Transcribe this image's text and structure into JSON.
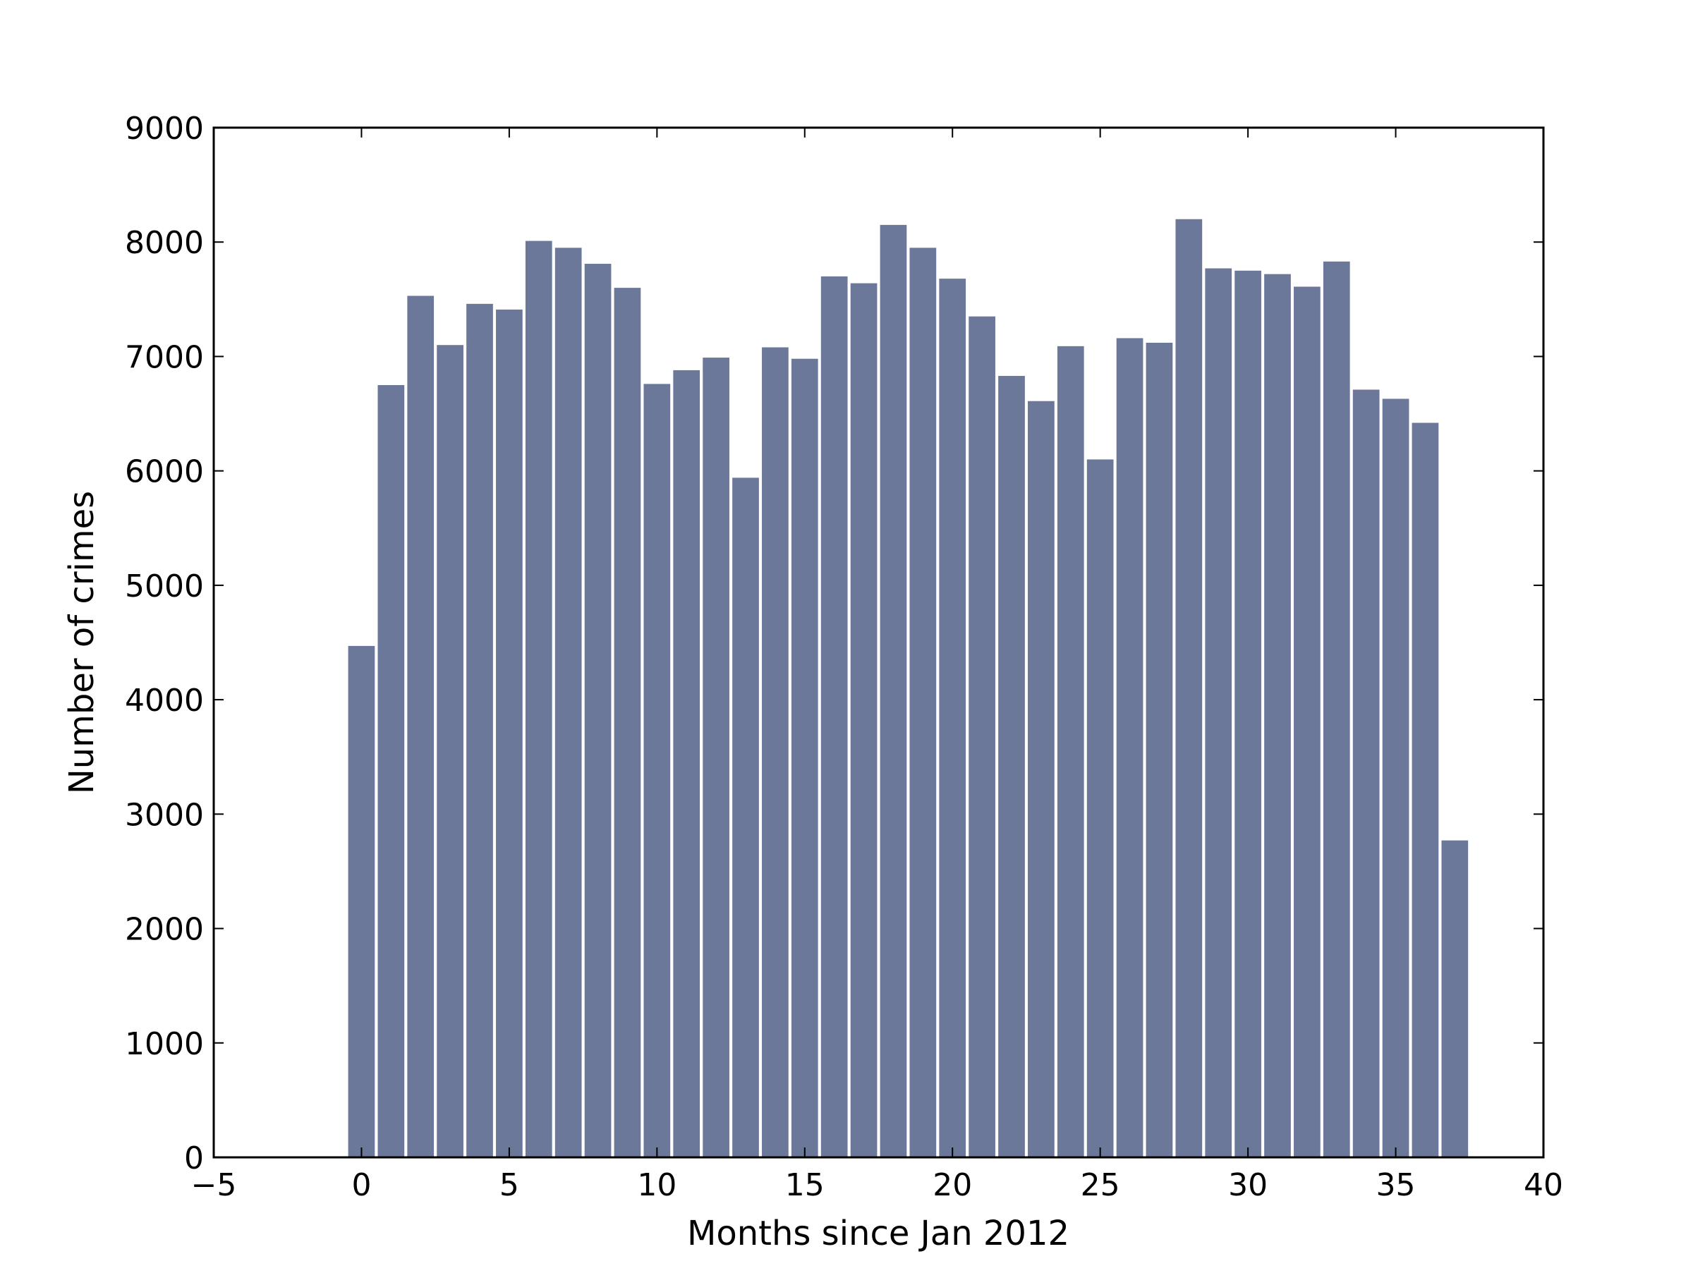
{
  "chart_data": {
    "type": "bar",
    "title": "",
    "xlabel": "Months since Jan 2012",
    "ylabel": "Number of crimes",
    "xlim": [
      -5,
      40
    ],
    "ylim": [
      0,
      9000
    ],
    "xticks": [
      -5,
      0,
      5,
      10,
      15,
      20,
      25,
      30,
      35,
      40
    ],
    "xtick_labels": [
      "−5",
      "0",
      "5",
      "10",
      "15",
      "20",
      "25",
      "30",
      "35",
      "40"
    ],
    "yticks": [
      0,
      1000,
      2000,
      3000,
      4000,
      5000,
      6000,
      7000,
      8000,
      9000
    ],
    "ytick_labels": [
      "0",
      "1000",
      "2000",
      "3000",
      "4000",
      "5000",
      "6000",
      "7000",
      "8000",
      "9000"
    ],
    "grid": false,
    "bar_color": "#6b789a",
    "bar_width": 0.9,
    "x": [
      0,
      1,
      2,
      3,
      4,
      5,
      6,
      7,
      8,
      9,
      10,
      11,
      12,
      13,
      14,
      15,
      16,
      17,
      18,
      19,
      20,
      21,
      22,
      23,
      24,
      25,
      26,
      27,
      28,
      29,
      30,
      31,
      32,
      33,
      34,
      35,
      36,
      37
    ],
    "values": [
      4470,
      6750,
      7530,
      7100,
      7460,
      7410,
      8010,
      7950,
      7810,
      7600,
      6760,
      6880,
      6990,
      5940,
      7080,
      6980,
      7700,
      7640,
      8150,
      7950,
      7680,
      7350,
      6830,
      6610,
      7090,
      6100,
      7160,
      7120,
      8200,
      7770,
      7750,
      7720,
      7610,
      7830,
      6710,
      6630,
      6420,
      2770
    ]
  }
}
